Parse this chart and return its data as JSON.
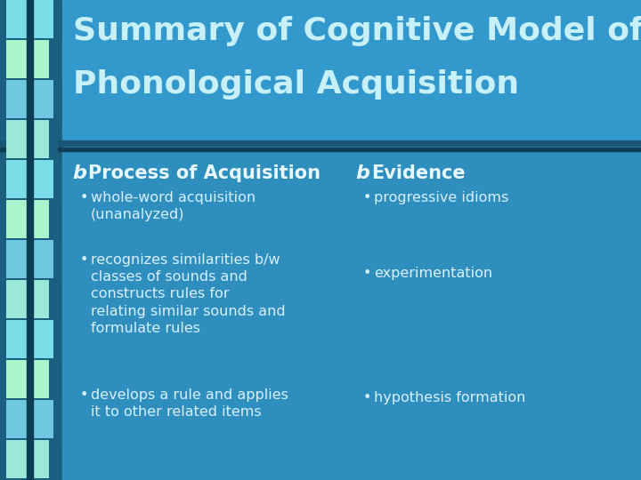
{
  "bg_color": "#2e8fbe",
  "title_bg_color": "#3399cc",
  "content_bg_color": "#2e8fbe",
  "divider_color": "#1a5a7a",
  "dark_stripe_color": "#1c6a8a",
  "title_line1": "Summary of Cognitive Model of",
  "title_line2": "Phonological Acquisition",
  "title_color": "#c8f0f8",
  "title_fontsize": 26,
  "header_color": "#e8f8ff",
  "header_fontsize": 15,
  "bullet_color": "#daf0ff",
  "bullet_fontsize": 11.5,
  "col1_header": "Process of Acquisition",
  "col2_header": "Evidence",
  "col1_bullets_line1": [
    "whole-word acquisition",
    "recognizes similarities b/w",
    "develops a rule and applies"
  ],
  "col1_bullets_line2": [
    "(unanalyzed)",
    "classes of sounds and",
    "it to other related items"
  ],
  "col1_bullets_line3": [
    "",
    "constructs rules for",
    ""
  ],
  "col1_bullets_line4": [
    "",
    "relating similar sounds and",
    ""
  ],
  "col1_bullets_line5": [
    "",
    "formulate rules",
    ""
  ],
  "col2_bullets": [
    "progressive idioms",
    "experimentation",
    "hypothesis formation"
  ],
  "left_bar_color": "#1a5f80",
  "pole_color": "#0d3d55",
  "ribbon_face_colors": [
    "#7adde8",
    "#aaf5cc",
    "#6ec8e0",
    "#99e8d8"
  ],
  "ribbon_shadow_color": "#1a6080",
  "fig_width": 7.2,
  "fig_height": 5.4,
  "dpi": 100
}
